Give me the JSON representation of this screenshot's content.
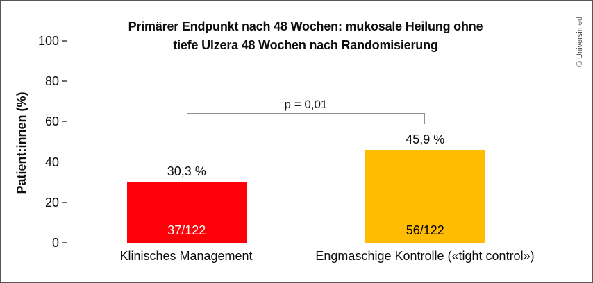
{
  "credit": "© Universimed",
  "chart_data": {
    "type": "bar",
    "title": "Primärer Endpunkt nach 48 Wochen: mukosale Heilung ohne tiefe Ulzera 48 Wochen nach Randomisierung",
    "title_lines": [
      "Primärer Endpunkt nach 48 Wochen: mukosale Heilung ohne",
      "tiefe Ulzera 48 Wochen nach Randomisierung"
    ],
    "ylabel": "Patient:innen (%)",
    "xlabel": "",
    "ylim": [
      0,
      100
    ],
    "yticks": [
      0,
      20,
      40,
      60,
      80,
      100
    ],
    "categories": [
      "Klinisches Management",
      "Engmaschige Kontrolle («tight control»)"
    ],
    "values": [
      30.3,
      45.9
    ],
    "value_labels": [
      "30,3 %",
      "45,9 %"
    ],
    "bar_count_labels": [
      "37/122",
      "56/122"
    ],
    "bar_colors": [
      "#ff0008",
      "#ffbc00"
    ],
    "inner_label_colors": [
      "#ffffff",
      "#000000"
    ],
    "annotation": "p = 0,01",
    "grid": false,
    "legend": null
  }
}
